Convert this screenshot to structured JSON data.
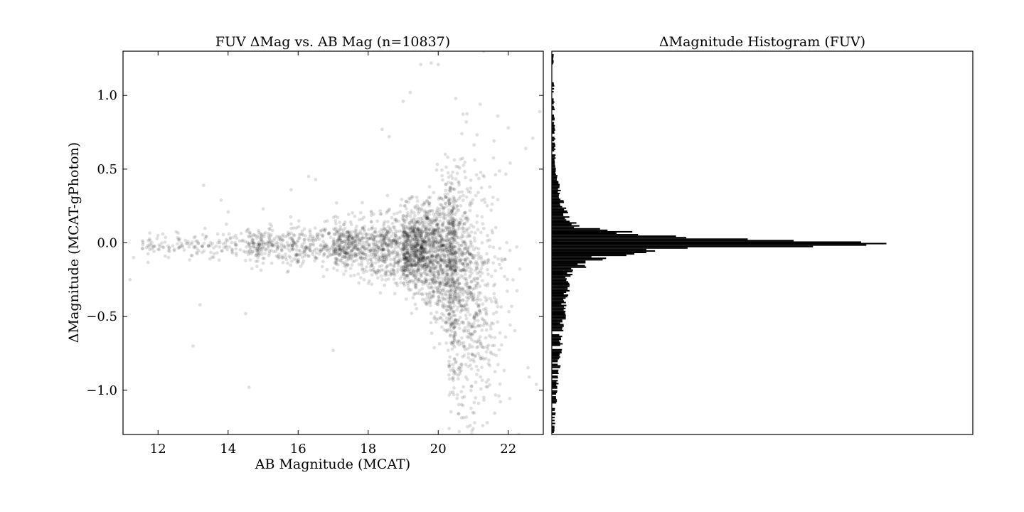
{
  "chart_data": [
    {
      "type": "scatter",
      "title": "FUV ΔMag vs. AB Mag (n=10837)",
      "xlabel": "AB Magnitude (MCAT)",
      "ylabel": "ΔMagnitude (MCAT-gPhoton)",
      "xlim": [
        11,
        23
      ],
      "ylim": [
        -1.3,
        1.3
      ],
      "xticks": [
        12,
        14,
        16,
        18,
        20,
        22
      ],
      "yticks": [
        -1.0,
        -0.5,
        0.0,
        0.5,
        1.0
      ],
      "xtick_labels": [
        "12",
        "14",
        "16",
        "18",
        "20",
        "22"
      ],
      "ytick_labels": [
        "−1.0",
        "−0.5",
        "0.0",
        "0.5",
        "1.0"
      ],
      "marker_color": "#000000",
      "marker_alpha": 0.12,
      "n_points": 10837,
      "grid": false,
      "points": [
        [
          11.3,
          -0.1
        ],
        [
          11.2,
          -0.25
        ],
        [
          12.3,
          -0.1
        ],
        [
          13.0,
          -0.7
        ],
        [
          13.3,
          0.39
        ],
        [
          13.2,
          -0.42
        ],
        [
          13.8,
          0.29
        ],
        [
          14.0,
          0.21
        ],
        [
          14.5,
          -0.48
        ],
        [
          14.6,
          -0.98
        ],
        [
          15.0,
          0.23
        ],
        [
          15.8,
          0.36
        ],
        [
          16.3,
          0.45
        ],
        [
          16.5,
          0.43
        ],
        [
          17.0,
          -0.73
        ],
        [
          18.4,
          0.77
        ],
        [
          18.6,
          0.72
        ],
        [
          19.0,
          0.96
        ],
        [
          19.2,
          1.02
        ],
        [
          19.5,
          1.21
        ],
        [
          19.8,
          1.22
        ],
        [
          20.0,
          1.21
        ],
        [
          20.2,
          0.6
        ],
        [
          20.5,
          0.98
        ],
        [
          20.8,
          0.82
        ],
        [
          21.2,
          0.94
        ],
        [
          21.3,
          1.3
        ],
        [
          21.7,
          0.86
        ],
        [
          22.0,
          0.78
        ],
        [
          22.7,
          0.71
        ],
        [
          22.5,
          0.64
        ],
        [
          22.9,
          0.89
        ],
        [
          22.3,
          -1.3
        ],
        [
          22.6,
          -0.91
        ],
        [
          22.8,
          -0.96
        ],
        [
          21.0,
          -1.26
        ],
        [
          20.6,
          -1.28
        ],
        [
          21.4,
          -1.22
        ]
      ],
      "trend": [
        {
          "x": 12,
          "y": -0.01,
          "spread": 0.04
        },
        {
          "x": 14,
          "y": -0.01,
          "spread": 0.05
        },
        {
          "x": 16,
          "y": -0.02,
          "spread": 0.07
        },
        {
          "x": 18,
          "y": -0.03,
          "spread": 0.1
        },
        {
          "x": 19.5,
          "y": -0.04,
          "spread": 0.14
        },
        {
          "x": 20.5,
          "y": -0.1,
          "spread": 0.28
        },
        {
          "x": 21.3,
          "y": -0.25,
          "spread": 0.4
        }
      ]
    },
    {
      "type": "bar",
      "orientation": "horizontal",
      "title": "ΔMagnitude Histogram (FUV)",
      "xlabel": "",
      "ylabel": "",
      "ylim": [
        -1.3,
        1.3
      ],
      "xlim": [
        0,
        1
      ],
      "bar_color": "#000000",
      "bin_width": 0.01,
      "x_ticks_shown": false,
      "y_ticks_shown": false,
      "distribution": [
        {
          "y": 1.2,
          "value": 0.004
        },
        {
          "y": 0.5,
          "value": 0.008
        },
        {
          "y": 0.25,
          "value": 0.025
        },
        {
          "y": 0.15,
          "value": 0.04
        },
        {
          "y": 0.1,
          "value": 0.07
        },
        {
          "y": 0.08,
          "value": 0.17
        },
        {
          "y": 0.05,
          "value": 0.22
        },
        {
          "y": 0.03,
          "value": 0.45
        },
        {
          "y": 0.01,
          "value": 0.73
        },
        {
          "y": 0.0,
          "value": 1.0
        },
        {
          "y": -0.01,
          "value": 0.73
        },
        {
          "y": -0.03,
          "value": 0.46
        },
        {
          "y": -0.05,
          "value": 0.22
        },
        {
          "y": -0.1,
          "value": 0.11
        },
        {
          "y": -0.2,
          "value": 0.045
        },
        {
          "y": -0.4,
          "value": 0.03
        },
        {
          "y": -0.8,
          "value": 0.018
        },
        {
          "y": -1.25,
          "value": 0.006
        }
      ]
    }
  ]
}
